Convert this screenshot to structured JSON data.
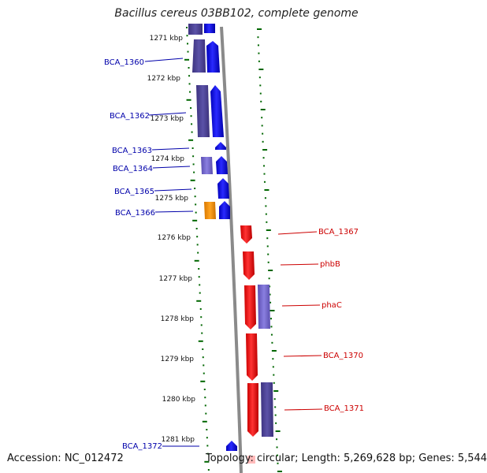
{
  "title": "Bacillus cereus 03BB102, complete genome",
  "footer": {
    "accession": "Accession: NC_012472",
    "summary": "Topology: circular; Length: 5,269,628 bp; Genes: 5,544"
  },
  "colors": {
    "forward_gene": "#0000ee",
    "forward_cds_dark": "#4a3f8f",
    "forward_cds_light": "#7766cc",
    "orange_gene": "#ee8800",
    "reverse_gene": "#ee0000",
    "reverse_cds": "#5a50a8",
    "backbone": "#888888",
    "ticks": "#006600",
    "forward_label": "#0000aa",
    "reverse_label": "#cc0000"
  },
  "scale_labels": [
    "1271 kbp",
    "1272 kbp",
    "1273 kbp",
    "1274 kbp",
    "1275 kbp",
    "1276 kbp",
    "1277 kbp",
    "1278 kbp",
    "1279 kbp",
    "1280 kbp",
    "1281 kbp"
  ],
  "forward_labels": [
    "BCA_1360",
    "BCA_1362",
    "BCA_1363",
    "BCA_1364",
    "BCA_1365",
    "BCA_1366",
    "BCA_1372"
  ],
  "reverse_labels": [
    "BCA_1367",
    "phbB",
    "phaC",
    "BCA_1370",
    "BCA_1371"
  ]
}
